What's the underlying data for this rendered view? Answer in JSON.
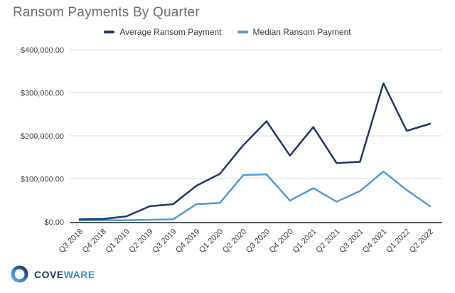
{
  "title": "Ransom Payments By Quarter",
  "legend": [
    {
      "id": "average",
      "label": "Average Ransom Payment",
      "color": "#1F3864"
    },
    {
      "id": "median",
      "label": "Median Ransom Payment",
      "color": "#4E9CD8"
    }
  ],
  "footer": {
    "logo_text_primary": "COVE",
    "logo_text_secondary": "WARE"
  },
  "colors": {
    "title_text": "#6f6f6f",
    "axis_text": "#404040",
    "gridline": "#d9d9d9",
    "axis_line": "#595959",
    "average_line": "#1F3864",
    "median_line": "#4E9CD8"
  },
  "chart_data": {
    "type": "line",
    "title": "Ransom Payments By Quarter",
    "categories": [
      "Q3 2018",
      "Q4 2018",
      "Q1 2019",
      "Q2 2019",
      "Q3 2019",
      "Q4 2019",
      "Q1 2020",
      "Q2 2020",
      "Q3 2020",
      "Q4 2020",
      "Q1 2021",
      "Q2 2021",
      "Q3 2021",
      "Q4 2021",
      "Q1 2022",
      "Q2 2022"
    ],
    "series": [
      {
        "name": "Average Ransom Payment",
        "color": "#1F3864",
        "values": [
          5974,
          6733,
          12762,
          36295,
          41198,
          84116,
          111605,
          178254,
          233817,
          154108,
          220298,
          136576,
          139739,
          322168,
          211529,
          228125
        ]
      },
      {
        "name": "Median Ransom Payment",
        "color": "#4E9CD8",
        "values": [
          4000,
          4000,
          4000,
          5000,
          6000,
          41179,
          44021,
          108597,
          110532,
          49450,
          78398,
          47008,
          71674,
          117116,
          73906,
          36360
        ]
      }
    ],
    "y_ticks": [
      {
        "label": "$400,000.00",
        "value": 400000
      },
      {
        "label": "$300,000.00",
        "value": 300000
      },
      {
        "label": "$200,000.00",
        "value": 200000
      },
      {
        "label": "$100,000.00",
        "value": 100000
      },
      {
        "label": "$0.00",
        "value": 0
      }
    ],
    "ylim": [
      0,
      400000
    ],
    "grid": true,
    "legend_position": "top"
  }
}
